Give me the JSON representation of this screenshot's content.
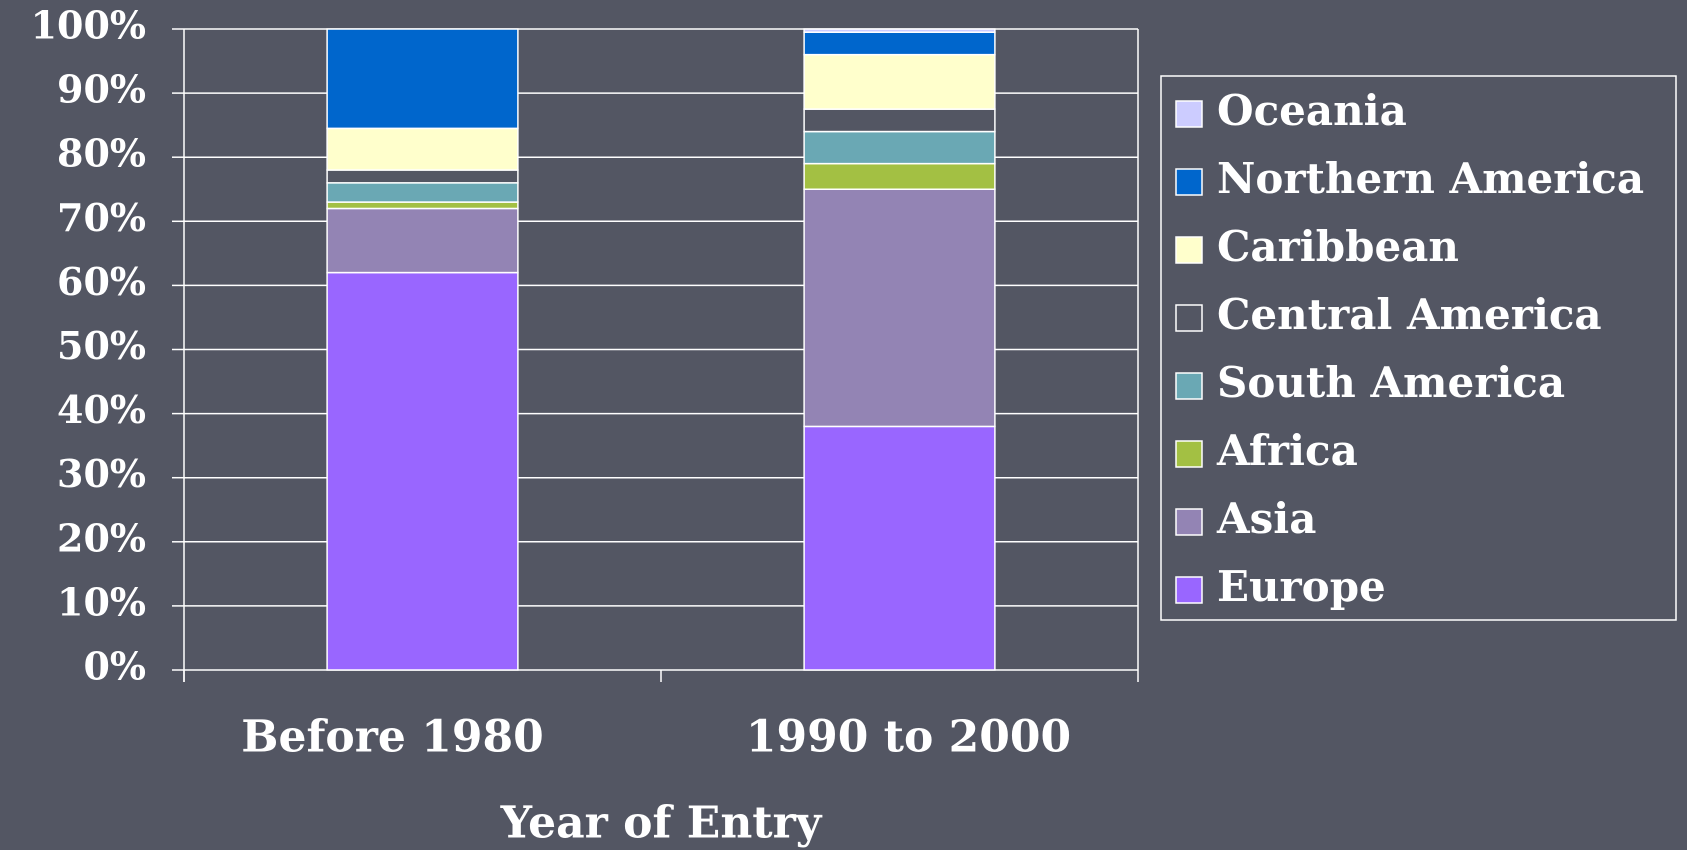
{
  "chart_data": {
    "type": "stacked_bar",
    "x_axis_label": "Year of Entry",
    "categories": [
      "Before 1980",
      "1990 to 2000"
    ],
    "series": [
      {
        "name": "Europe",
        "color": "#9966ff",
        "values": [
          62,
          38
        ]
      },
      {
        "name": "Asia",
        "color": "#9384b4",
        "values": [
          10,
          37
        ]
      },
      {
        "name": "Africa",
        "color": "#a3c043",
        "values": [
          1,
          4
        ]
      },
      {
        "name": "South America",
        "color": "#6aa8b4",
        "values": [
          3,
          5
        ]
      },
      {
        "name": "Central America",
        "color": "#535663",
        "values": [
          2,
          3.5
        ]
      },
      {
        "name": "Caribbean",
        "color": "#ffffcc",
        "values": [
          6.5,
          8.5
        ]
      },
      {
        "name": "Northern America",
        "color": "#0066cc",
        "values": [
          15.5,
          3.5
        ]
      },
      {
        "name": "Oceania",
        "color": "#ccccff",
        "values": [
          0,
          0.5
        ]
      }
    ],
    "ylim": [
      0,
      100
    ],
    "yticks": [
      {
        "value": 0,
        "label": "0%"
      },
      {
        "value": 10,
        "label": "10%"
      },
      {
        "value": 20,
        "label": "20%"
      },
      {
        "value": 30,
        "label": "30%"
      },
      {
        "value": 40,
        "label": "40%"
      },
      {
        "value": 50,
        "label": "50%"
      },
      {
        "value": 60,
        "label": "60%"
      },
      {
        "value": 70,
        "label": "70%"
      },
      {
        "value": 80,
        "label": "80%"
      },
      {
        "value": 90,
        "label": "90%"
      },
      {
        "value": 100,
        "label": "100%"
      }
    ],
    "grid": true,
    "legend": "right"
  }
}
